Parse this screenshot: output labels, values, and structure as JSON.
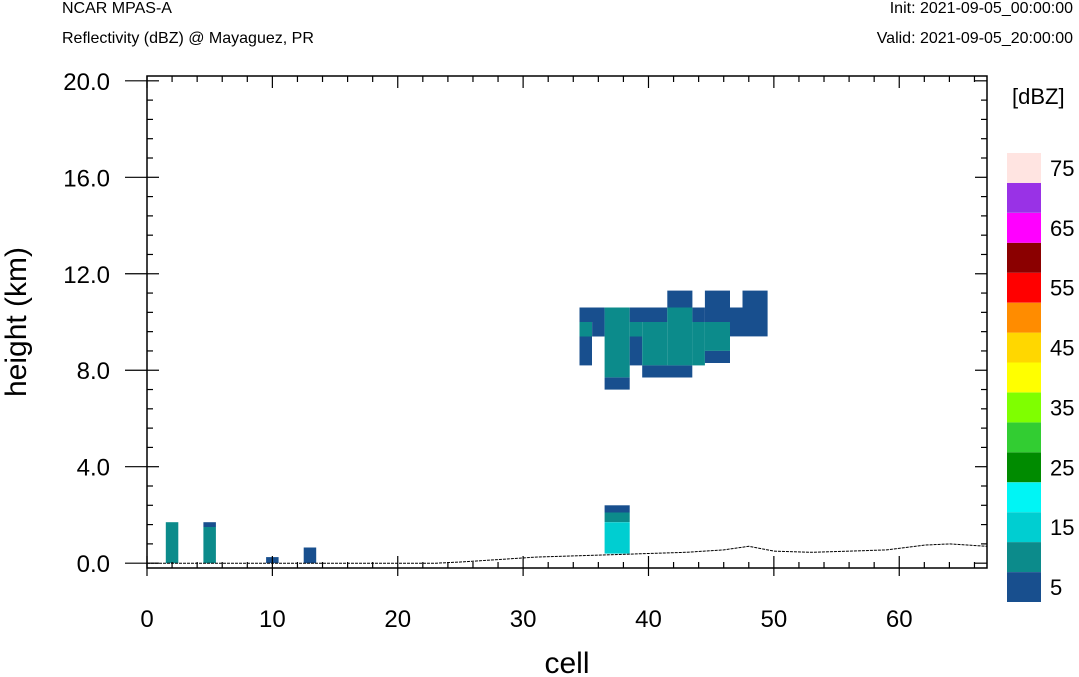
{
  "header": {
    "model": "NCAR MPAS-A",
    "field": "Reflectivity (dBZ) @ Mayaguez, PR",
    "init": "Init: 2021-09-05_00:00:00",
    "valid": "Valid: 2021-09-05_20:00:00"
  },
  "chart_data": {
    "type": "heatmap",
    "title": "Reflectivity (dBZ) @ Mayaguez, PR",
    "xlabel": "cell",
    "ylabel": "height (km)",
    "xlim": [
      0,
      67
    ],
    "ylim": [
      -0.2,
      20.2
    ],
    "xticks": [
      0,
      10,
      20,
      30,
      40,
      50,
      60
    ],
    "xtick_labels": [
      "0",
      "10",
      "20",
      "30",
      "40",
      "50",
      "60"
    ],
    "yticks": [
      0,
      4,
      8,
      12,
      16,
      20
    ],
    "ytick_labels": [
      "0.0",
      "4.0",
      "8.0",
      "12.0",
      "16.0",
      "20.0"
    ],
    "colorbar": {
      "units": "[dBZ]",
      "levels": [
        5,
        10,
        15,
        20,
        25,
        30,
        35,
        40,
        45,
        50,
        55,
        60,
        65,
        70,
        75
      ],
      "labeled_levels": [
        "5",
        "15",
        "25",
        "35",
        "45",
        "55",
        "65",
        "75"
      ],
      "colors": [
        "#184f8e",
        "#0c8b8b",
        "#00ced1",
        "#00f5f5",
        "#008b00",
        "#32cd32",
        "#7fff00",
        "#ffff00",
        "#ffd700",
        "#ff8c00",
        "#ff0000",
        "#8b0000",
        "#ff00ff",
        "#9932e6",
        "#ffe4e1"
      ]
    },
    "cells": [
      {
        "x": [
          1.5,
          2.5
        ],
        "y": [
          0,
          1.7
        ],
        "dbz": 10
      },
      {
        "x": [
          4.5,
          5.5
        ],
        "y": [
          0,
          1.5
        ],
        "dbz": 10
      },
      {
        "x": [
          4.5,
          5.5
        ],
        "y": [
          1.5,
          1.7
        ],
        "dbz": 5
      },
      {
        "x": [
          9.5,
          10.5
        ],
        "y": [
          0,
          0.25
        ],
        "dbz": 5
      },
      {
        "x": [
          12.5,
          13.5
        ],
        "y": [
          0,
          0.65
        ],
        "dbz": 5
      },
      {
        "x": [
          36.5,
          38.5
        ],
        "y": [
          0.4,
          1.7
        ],
        "dbz": 15
      },
      {
        "x": [
          36.5,
          38.5
        ],
        "y": [
          1.7,
          2.1
        ],
        "dbz": 10
      },
      {
        "x": [
          36.5,
          38.5
        ],
        "y": [
          2.1,
          2.4
        ],
        "dbz": 5
      },
      {
        "x": [
          34.5,
          36.5
        ],
        "y": [
          10.0,
          10.6
        ],
        "dbz": 5
      },
      {
        "x": [
          34.5,
          35.5
        ],
        "y": [
          9.4,
          10.0
        ],
        "dbz": 10
      },
      {
        "x": [
          35.5,
          36.5
        ],
        "y": [
          9.4,
          10.0
        ],
        "dbz": 5
      },
      {
        "x": [
          34.5,
          35.5
        ],
        "y": [
          8.2,
          9.4
        ],
        "dbz": 5
      },
      {
        "x": [
          36.5,
          38.5
        ],
        "y": [
          7.7,
          10.6
        ],
        "dbz": 10
      },
      {
        "x": [
          36.5,
          38.5
        ],
        "y": [
          7.2,
          7.7
        ],
        "dbz": 5
      },
      {
        "x": [
          38.5,
          41.5
        ],
        "y": [
          10.0,
          10.6
        ],
        "dbz": 5
      },
      {
        "x": [
          38.5,
          39.5
        ],
        "y": [
          9.4,
          10.0
        ],
        "dbz": 10
      },
      {
        "x": [
          38.5,
          39.5
        ],
        "y": [
          8.2,
          9.4
        ],
        "dbz": 5
      },
      {
        "x": [
          39.5,
          41.5
        ],
        "y": [
          8.2,
          10.0
        ],
        "dbz": 10
      },
      {
        "x": [
          39.5,
          43.5
        ],
        "y": [
          7.7,
          8.2
        ],
        "dbz": 5
      },
      {
        "x": [
          41.5,
          43.5
        ],
        "y": [
          10.6,
          11.3
        ],
        "dbz": 5
      },
      {
        "x": [
          41.5,
          43.5
        ],
        "y": [
          8.2,
          10.6
        ],
        "dbz": 10
      },
      {
        "x": [
          43.5,
          44.5
        ],
        "y": [
          10.0,
          10.6
        ],
        "dbz": 5
      },
      {
        "x": [
          43.5,
          44.5
        ],
        "y": [
          8.2,
          10.0
        ],
        "dbz": 10
      },
      {
        "x": [
          44.5,
          46.5
        ],
        "y": [
          10.6,
          11.3
        ],
        "dbz": 5
      },
      {
        "x": [
          44.5,
          46.5
        ],
        "y": [
          10.0,
          10.6
        ],
        "dbz": 5
      },
      {
        "x": [
          44.5,
          46.5
        ],
        "y": [
          8.8,
          10.0
        ],
        "dbz": 10
      },
      {
        "x": [
          44.5,
          46.5
        ],
        "y": [
          8.3,
          8.8
        ],
        "dbz": 5
      },
      {
        "x": [
          46.5,
          49.5
        ],
        "y": [
          9.4,
          10.6
        ],
        "dbz": 5
      },
      {
        "x": [
          47.5,
          49.5
        ],
        "y": [
          10.6,
          11.3
        ],
        "dbz": 5
      }
    ],
    "terrain": {
      "x": [
        0,
        5,
        10,
        15,
        20,
        23,
        25,
        28,
        31,
        34,
        37,
        40,
        43,
        46,
        48,
        50,
        53,
        56,
        59,
        62,
        64,
        67
      ],
      "height_km": [
        0.0,
        0.0,
        0.0,
        0.0,
        0.0,
        0.0,
        0.05,
        0.15,
        0.25,
        0.3,
        0.35,
        0.4,
        0.45,
        0.55,
        0.7,
        0.5,
        0.45,
        0.5,
        0.55,
        0.75,
        0.8,
        0.7
      ]
    }
  }
}
